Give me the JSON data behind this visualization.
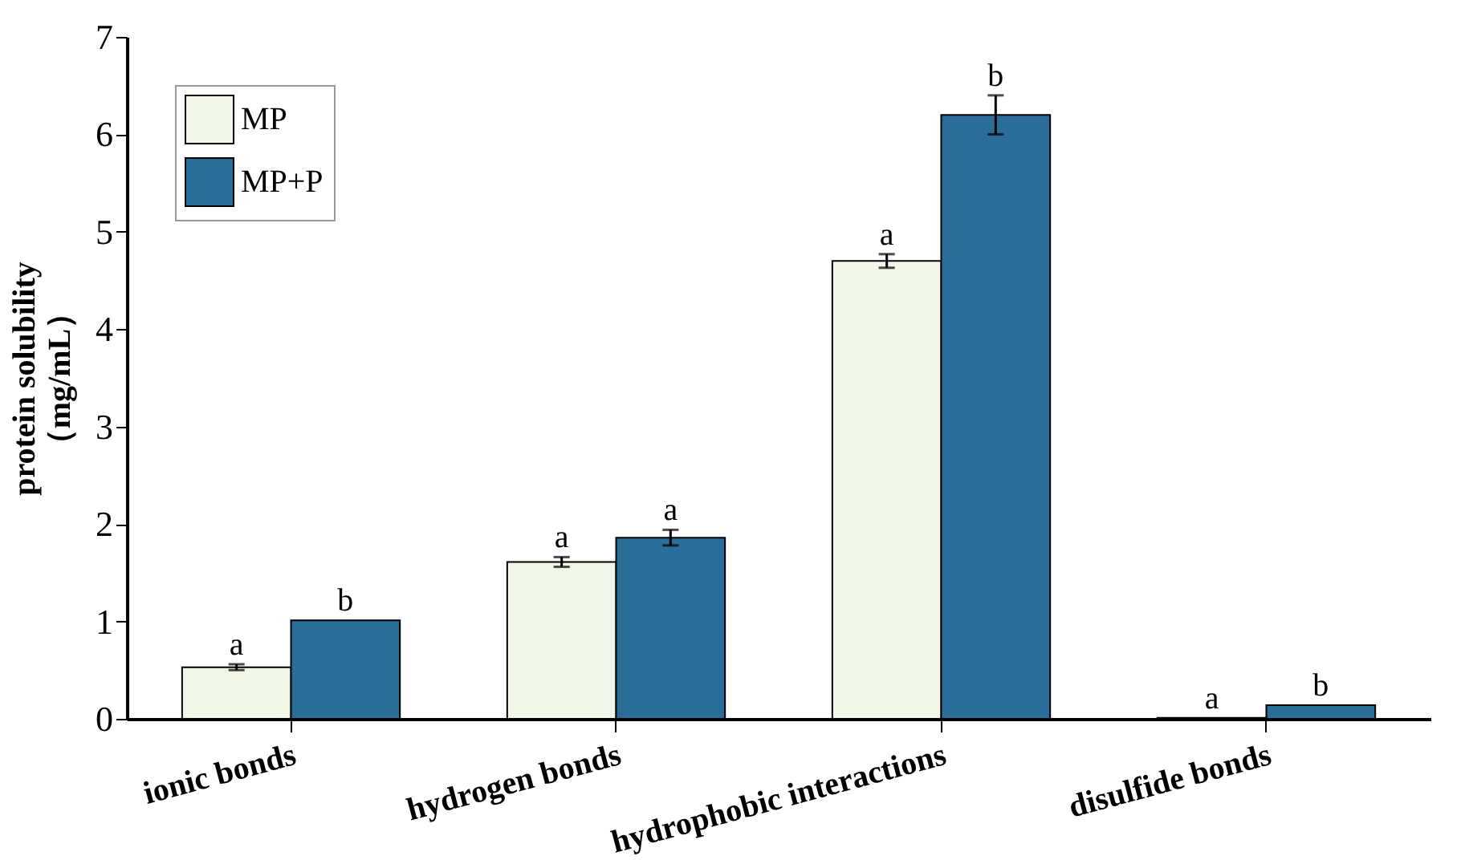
{
  "chart_data": {
    "type": "bar",
    "ylabel": "protein solubility\n（mg/mL）",
    "categories": [
      "ionic bonds",
      "hydrogen bonds",
      "hydrophobic interactions",
      "disulfide bonds"
    ],
    "series": [
      {
        "name": "MP",
        "color": "#f0f6e8",
        "values": [
          0.53,
          1.61,
          4.7,
          0.01
        ],
        "errors": [
          0.03,
          0.05,
          0.07,
          null
        ]
      },
      {
        "name": "MP+P",
        "color": "#2b6d99",
        "values": [
          1.01,
          1.86,
          6.2,
          0.14
        ],
        "errors": [
          null,
          0.08,
          0.2,
          null
        ]
      }
    ],
    "ylim": [
      0,
      7
    ],
    "yticks": [
      0,
      1,
      2,
      3,
      4,
      5,
      6,
      7
    ],
    "grid": false,
    "legend": "top left",
    "annotations": [
      {
        "text": "a",
        "x": "ionic bonds",
        "y": 0.53
      },
      {
        "text": "b",
        "x": "ionic bonds",
        "y": 1.01
      },
      {
        "text": "a",
        "x": "hydrogen bonds",
        "y": 1.61
      },
      {
        "text": "a",
        "x": "hydrogen bonds",
        "y": 1.86
      },
      {
        "text": "a",
        "x": "hydrophobic interactions",
        "y": 4.7
      },
      {
        "text": "b",
        "x": "hydrophobic interactions",
        "y": 6.2
      },
      {
        "text": "a",
        "x": "disulfide bonds",
        "y": 0.01
      },
      {
        "text": "b",
        "x": "disulfide bonds",
        "y": 0.14
      }
    ]
  }
}
